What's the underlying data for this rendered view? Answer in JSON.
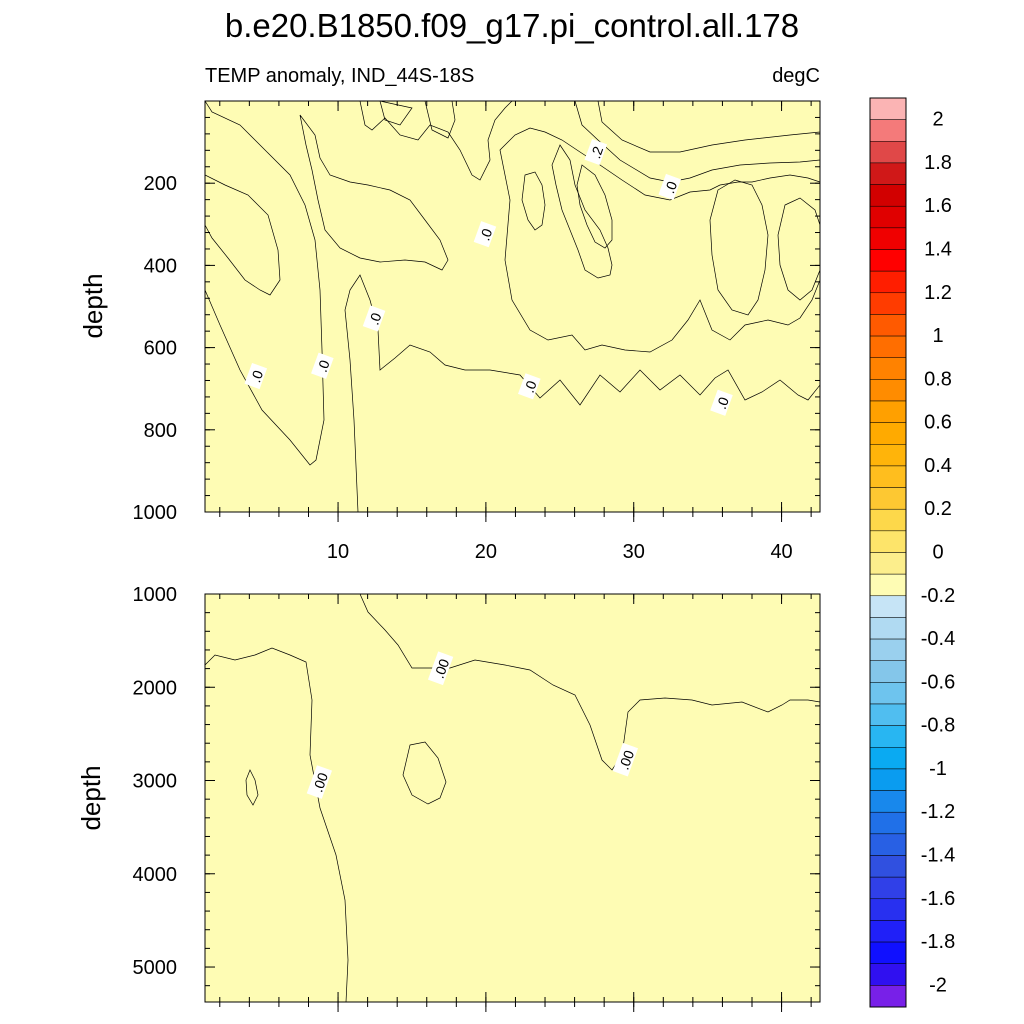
{
  "chart_data": {
    "type": "heatmap",
    "title": "b.e20.B1850.f09_g17.pi_control.all.178",
    "subtitle_left": "TEMP anomaly, IND_44S-18S",
    "subtitle_right": "degC",
    "colors": {
      "zero_to_pos": "#fefcb4",
      "pos_0_1": "#fdf6a0",
      "pos_0_2": "#fcee86",
      "pos_0_3": "#fbe362",
      "zero_to_neg": "#c6e4f6",
      "neg_0_1": "#a9d6f1"
    },
    "panels": [
      {
        "ylabel": "depth",
        "ylim": [
          0,
          1000
        ],
        "xlim": [
          1,
          42.6
        ],
        "y_ticks": [
          200,
          400,
          600,
          800,
          1000
        ],
        "y_tick_labels": [
          "200",
          "400",
          "600",
          "800",
          "1000"
        ],
        "x_ticks": [
          10,
          20,
          30,
          40
        ],
        "x_tick_labels": [
          "10",
          "20",
          "30",
          "40"
        ],
        "contour_labels": [
          {
            "text": ".0",
            "x": 4.5,
            "y": 670
          },
          {
            "text": ".0",
            "x": 9.0,
            "y": 645
          },
          {
            "text": ".0",
            "x": 12.5,
            "y": 530
          },
          {
            "text": ".0",
            "x": 20.0,
            "y": 325
          },
          {
            "text": ".0",
            "x": 23.0,
            "y": 695
          },
          {
            "text": ".2",
            "x": 27.5,
            "y": 125
          },
          {
            "text": ".0",
            "x": 32.5,
            "y": 210
          },
          {
            "text": ".0",
            "x": 36.0,
            "y": 735
          }
        ]
      },
      {
        "ylabel": "depth",
        "ylim": [
          1000,
          5375
        ],
        "xlim": [
          1,
          42.6
        ],
        "y_ticks": [
          1000,
          2000,
          3000,
          4000,
          5000
        ],
        "y_tick_labels": [
          "1000",
          "2000",
          "3000",
          "4000",
          "5000"
        ],
        "x_ticks": [
          10,
          20,
          30,
          40
        ],
        "contour_labels": [
          {
            "text": ".00",
            "x": 8.8,
            "y": 3020
          },
          {
            "text": ".00",
            "x": 17.0,
            "y": 1800
          },
          {
            "text": ".00",
            "x": 29.5,
            "y": 2780
          }
        ]
      }
    ],
    "colorbar": {
      "levels": [
        -2,
        -1.9,
        -1.8,
        -1.7,
        -1.6,
        -1.5,
        -1.4,
        -1.3,
        -1.2,
        -1.1,
        -1,
        -0.9,
        -0.8,
        -0.7,
        -0.6,
        -0.5,
        -0.4,
        -0.3,
        -0.2,
        -0.1,
        0,
        0.1,
        0.2,
        0.3,
        0.4,
        0.5,
        0.6,
        0.7,
        0.8,
        0.9,
        1,
        1.1,
        1.2,
        1.3,
        1.4,
        1.5,
        1.6,
        1.7,
        1.8,
        1.9,
        2
      ],
      "labels": [
        "2",
        "1.8",
        "1.6",
        "1.4",
        "1.2",
        "1",
        "0.8",
        "0.6",
        "0.4",
        "0.2",
        "0",
        "-0.2",
        "-0.4",
        "-0.6",
        "-0.8",
        "-1",
        "-1.2",
        "-1.4",
        "-1.6",
        "-1.8",
        "-2"
      ],
      "colors_top_to_bottom": [
        "#fbb4b4",
        "#f47a7a",
        "#e04848",
        "#d01818",
        "#d20000",
        "#e00000",
        "#f00000",
        "#ff0000",
        "#ff1e00",
        "#ff3c00",
        "#ff5a00",
        "#ff6e00",
        "#ff8200",
        "#ff8c00",
        "#ffa000",
        "#ffaa00",
        "#ffb40a",
        "#ffbe1e",
        "#fdc832",
        "#fdd84a",
        "#fde46a",
        "#fcee8c",
        "#fefcb4",
        "#c6e4f6",
        "#b0daf2",
        "#9ad0ee",
        "#84c6ea",
        "#6ec4ee",
        "#50bef0",
        "#28b6f2",
        "#0aaaf2",
        "#0a9cf0",
        "#1888ec",
        "#2070e8",
        "#2860e4",
        "#3050e0",
        "#3040e8",
        "#2830f0",
        "#2020f8",
        "#1010ff",
        "#3010f0",
        "#7820e8"
      ]
    }
  }
}
